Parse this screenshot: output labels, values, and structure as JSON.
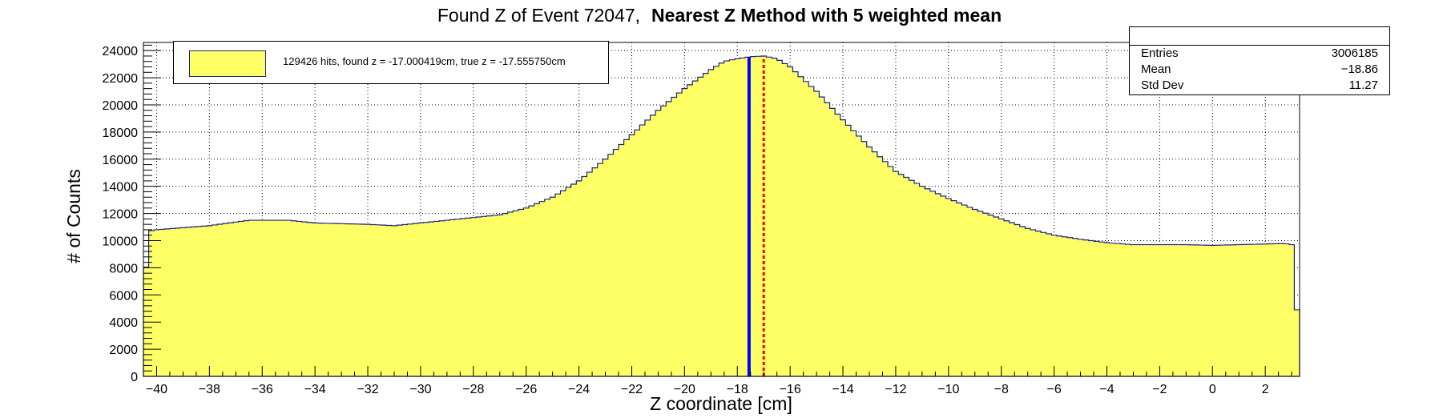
{
  "title": {
    "main": "Found Z of Event 72047,",
    "bold": "Nearest Z Method with 5 weighted mean"
  },
  "legend": {
    "label": "129426 hits, found z = -17.000419cm, true z = -17.555750cm"
  },
  "stats": {
    "entries_label": "Entries",
    "entries_value": "3006185",
    "mean_label": "Mean",
    "mean_value": "−18.86",
    "std_label": "Std Dev",
    "std_value": "11.27"
  },
  "colors": {
    "fill": "#ffff66",
    "outline": "#1a237e",
    "true_line": "#0000ff",
    "found_line": "#ff0000"
  },
  "chart_data": {
    "type": "histogram",
    "xlabel": "Z coordinate [cm]",
    "ylabel": "# of Counts",
    "xlim": [
      -40.5,
      3.3
    ],
    "ylim": [
      0,
      24600
    ],
    "x_ticks": [
      -40,
      -38,
      -36,
      -34,
      -32,
      -30,
      -28,
      -26,
      -24,
      -22,
      -20,
      -18,
      -16,
      -14,
      -12,
      -10,
      -8,
      -6,
      -4,
      -2,
      0,
      2
    ],
    "y_ticks": [
      0,
      2000,
      4000,
      6000,
      8000,
      10000,
      12000,
      14000,
      16000,
      18000,
      20000,
      22000,
      24000
    ],
    "grid": true,
    "profile": [
      [
        -40.5,
        5400
      ],
      [
        -40.3,
        10700
      ],
      [
        -40.0,
        10800
      ],
      [
        -38.0,
        11100
      ],
      [
        -36.5,
        11500
      ],
      [
        -35.0,
        11500
      ],
      [
        -34.0,
        11300
      ],
      [
        -32.0,
        11200
      ],
      [
        -31.0,
        11100
      ],
      [
        -30.0,
        11300
      ],
      [
        -28.0,
        11700
      ],
      [
        -27.0,
        11900
      ],
      [
        -26.0,
        12400
      ],
      [
        -25.0,
        13200
      ],
      [
        -24.0,
        14400
      ],
      [
        -23.0,
        16000
      ],
      [
        -22.0,
        17800
      ],
      [
        -21.0,
        19600
      ],
      [
        -20.0,
        21200
      ],
      [
        -19.0,
        22600
      ],
      [
        -18.5,
        23200
      ],
      [
        -18.0,
        23400
      ],
      [
        -17.5,
        23550
      ],
      [
        -17.0,
        23600
      ],
      [
        -16.5,
        23400
      ],
      [
        -16.0,
        22800
      ],
      [
        -15.0,
        21000
      ],
      [
        -14.0,
        18900
      ],
      [
        -13.0,
        16900
      ],
      [
        -12.0,
        15100
      ],
      [
        -11.0,
        14000
      ],
      [
        -10.0,
        13100
      ],
      [
        -9.0,
        12300
      ],
      [
        -8.0,
        11600
      ],
      [
        -7.0,
        10900
      ],
      [
        -6.0,
        10400
      ],
      [
        -5.0,
        10100
      ],
      [
        -4.0,
        9850
      ],
      [
        -3.0,
        9700
      ],
      [
        -2.0,
        9700
      ],
      [
        -1.0,
        9700
      ],
      [
        0.0,
        9650
      ],
      [
        1.0,
        9700
      ],
      [
        2.0,
        9750
      ],
      [
        2.7,
        9800
      ],
      [
        3.0,
        9700
      ],
      [
        3.1,
        4900
      ],
      [
        3.3,
        4900
      ]
    ],
    "true_z": -17.55575,
    "found_z": -17.000419,
    "legend_position": "top-left",
    "stats_position": "top-right"
  }
}
